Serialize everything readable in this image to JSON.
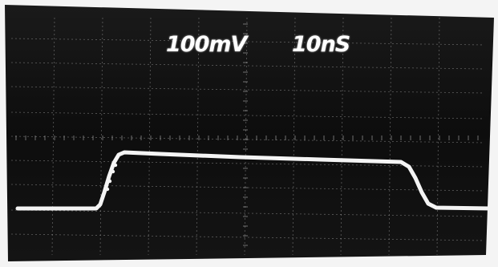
{
  "scope": {
    "volts_per_div": "100mV",
    "time_per_div": "10nS"
  },
  "colors": {
    "screen": "#121212",
    "trace": "#f4f4f4",
    "graticule": "#9a9a9a",
    "bezel": "#f4f4f4"
  },
  "waveform": {
    "shape": "pulse",
    "baseline_level": "low",
    "plateau_level": "high"
  }
}
